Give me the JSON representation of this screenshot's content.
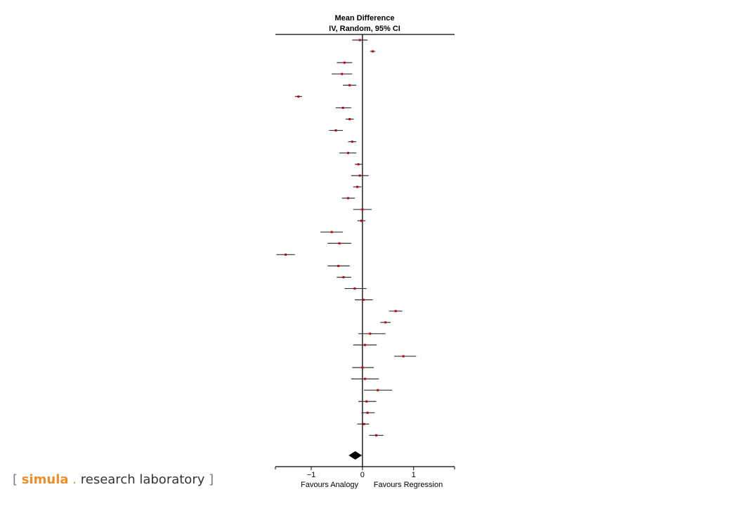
{
  "chart_data": {
    "type": "forest",
    "title": "Mean Difference",
    "subtitle": "IV, Random, 95% CI",
    "xlim": [
      -1.7,
      1.8
    ],
    "xticks": [
      -1,
      0,
      1
    ],
    "xtick_labels": [
      "−1",
      "0",
      "1"
    ],
    "left_label": "Favours Analogy",
    "right_label": "Favours Regression",
    "grid": false,
    "studies": [
      {
        "est": -0.05,
        "lo": -0.2,
        "hi": 0.1
      },
      {
        "est": 0.2,
        "lo": 0.15,
        "hi": 0.25
      },
      {
        "est": -0.35,
        "lo": -0.5,
        "hi": -0.2
      },
      {
        "est": -0.4,
        "lo": -0.6,
        "hi": -0.2
      },
      {
        "est": -0.25,
        "lo": -0.38,
        "hi": -0.12
      },
      {
        "est": -1.25,
        "lo": -1.32,
        "hi": -1.18
      },
      {
        "est": -0.38,
        "lo": -0.52,
        "hi": -0.22
      },
      {
        "est": -0.25,
        "lo": -0.33,
        "hi": -0.17
      },
      {
        "est": -0.52,
        "lo": -0.65,
        "hi": -0.38
      },
      {
        "est": -0.2,
        "lo": -0.28,
        "hi": -0.12
      },
      {
        "est": -0.28,
        "lo": -0.45,
        "hi": -0.12
      },
      {
        "est": -0.08,
        "lo": -0.15,
        "hi": -0.01
      },
      {
        "est": -0.05,
        "lo": -0.22,
        "hi": 0.12
      },
      {
        "est": -0.1,
        "lo": -0.18,
        "hi": -0.02
      },
      {
        "est": -0.28,
        "lo": -0.4,
        "hi": -0.15
      },
      {
        "est": 0.0,
        "lo": -0.18,
        "hi": 0.18
      },
      {
        "est": -0.02,
        "lo": -0.1,
        "hi": 0.06
      },
      {
        "est": -0.6,
        "lo": -0.82,
        "hi": -0.38
      },
      {
        "est": -0.45,
        "lo": -0.68,
        "hi": -0.22
      },
      {
        "est": -1.5,
        "lo": -1.68,
        "hi": -1.32
      },
      {
        "est": -0.47,
        "lo": -0.68,
        "hi": -0.25
      },
      {
        "est": -0.37,
        "lo": -0.5,
        "hi": -0.22
      },
      {
        "est": -0.15,
        "lo": -0.35,
        "hi": 0.08
      },
      {
        "est": 0.02,
        "lo": -0.15,
        "hi": 0.2
      },
      {
        "est": 0.65,
        "lo": 0.52,
        "hi": 0.78
      },
      {
        "est": 0.45,
        "lo": 0.35,
        "hi": 0.55
      },
      {
        "est": 0.15,
        "lo": -0.08,
        "hi": 0.45
      },
      {
        "est": 0.05,
        "lo": -0.18,
        "hi": 0.28
      },
      {
        "est": 0.8,
        "lo": 0.62,
        "hi": 1.05
      },
      {
        "est": 0.0,
        "lo": -0.2,
        "hi": 0.22
      },
      {
        "est": 0.05,
        "lo": -0.22,
        "hi": 0.32
      },
      {
        "est": 0.3,
        "lo": 0.03,
        "hi": 0.58
      },
      {
        "est": 0.08,
        "lo": -0.08,
        "hi": 0.27
      },
      {
        "est": 0.1,
        "lo": -0.02,
        "hi": 0.24
      },
      {
        "est": 0.03,
        "lo": -0.1,
        "hi": 0.13
      },
      {
        "est": 0.27,
        "lo": 0.13,
        "hi": 0.41
      }
    ],
    "pooled": {
      "est": -0.14,
      "lo": -0.27,
      "hi": -0.01
    },
    "colors": {
      "ci": "#333333",
      "point": "#cc0000",
      "diamond": "#000000",
      "axis": "#000000"
    }
  },
  "footer": {
    "open": "[",
    "brand": "simula",
    "dot": ".",
    "text": "research laboratory",
    "close": "]"
  }
}
